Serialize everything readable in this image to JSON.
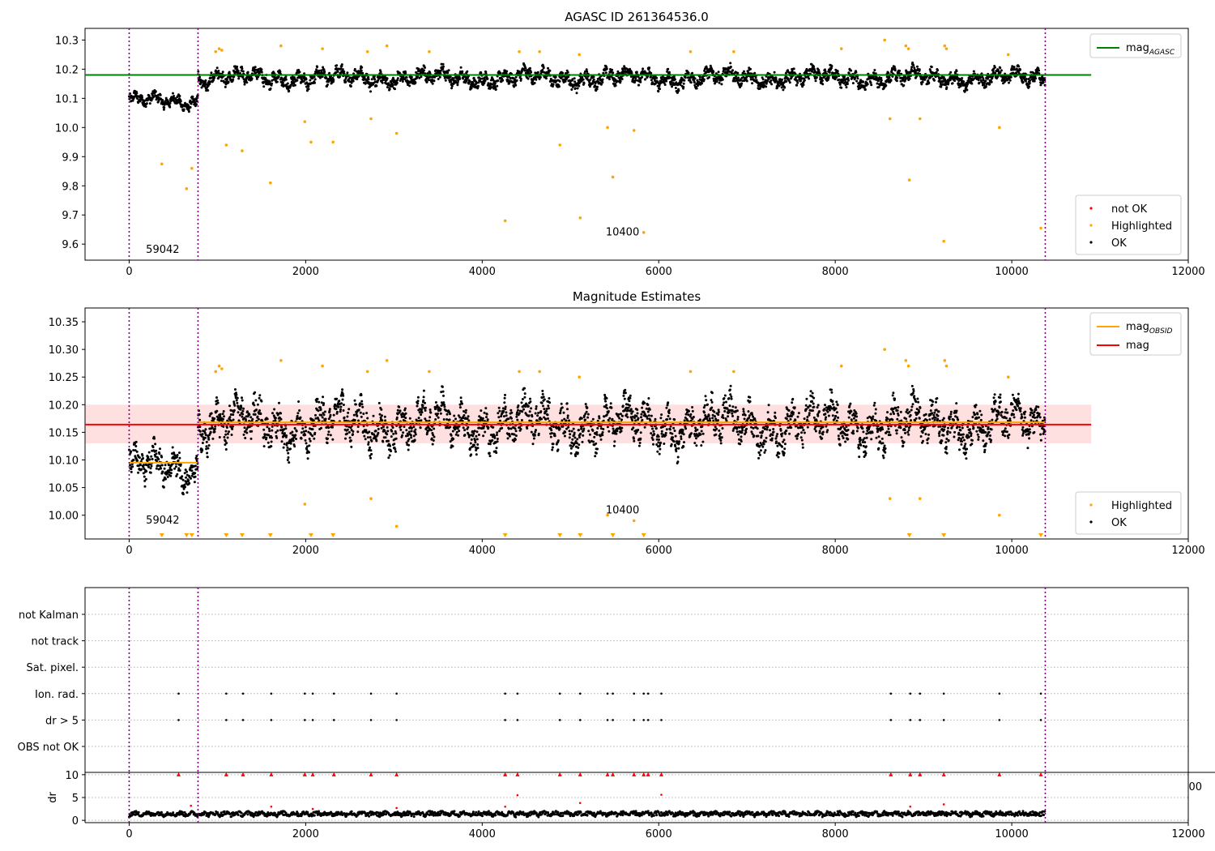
{
  "chart_data": [
    {
      "type": "scatter",
      "title": "AGASC ID 261364536.0",
      "xlim": [
        -500,
        12000
      ],
      "ylim": [
        9.545,
        10.34
      ],
      "xticks": [
        0,
        2000,
        4000,
        6000,
        8000,
        10000,
        12000
      ],
      "yticks": [
        9.6,
        9.7,
        9.8,
        9.9,
        10.0,
        10.1,
        10.2,
        10.3
      ],
      "ytick_labels": [
        "9.6",
        "9.7",
        "9.8",
        "9.9",
        "10.0",
        "10.1",
        "10.2",
        "10.3"
      ],
      "lines": [
        {
          "name": "mag_AGASC",
          "label_main": "mag",
          "label_sub": "AGASC",
          "y": 10.18,
          "x": [
            -500,
            10900
          ],
          "color": "#008000"
        }
      ],
      "vlines": [
        0,
        780,
        10380
      ],
      "vline_color": "#800080",
      "annotations": [
        {
          "text": "59042",
          "x": 190,
          "y": 9.57
        },
        {
          "text": "10400",
          "x": 5400,
          "y": 9.63
        }
      ],
      "legend": [
        {
          "label": "not OK",
          "color": "#ff0000",
          "kind": "dot"
        },
        {
          "label": "Highlighted",
          "color": "#ffa500",
          "kind": "dot"
        },
        {
          "label": "OK",
          "color": "#000000",
          "kind": "dot"
        }
      ],
      "legend_position": "lower-right",
      "line_legend_position": "upper-right",
      "segments": [
        {
          "x": [
            0,
            780
          ],
          "base": 10.09,
          "amp": 0.025
        },
        {
          "x": [
            780,
            10380
          ],
          "base": 10.17,
          "amp": 0.03
        }
      ],
      "highlighted_outliers": [
        [
          370,
          9.875
        ],
        [
          650,
          9.79
        ],
        [
          710,
          9.86
        ],
        [
          1100,
          9.94
        ],
        [
          1280,
          9.92
        ],
        [
          1600,
          9.81
        ],
        [
          1990,
          10.02
        ],
        [
          2060,
          9.95
        ],
        [
          2310,
          9.95
        ],
        [
          2740,
          10.03
        ],
        [
          3030,
          9.98
        ],
        [
          4260,
          9.68
        ],
        [
          4880,
          9.94
        ],
        [
          5110,
          9.69
        ],
        [
          5420,
          10.0
        ],
        [
          5480,
          9.83
        ],
        [
          5720,
          9.99
        ],
        [
          5830,
          9.64
        ],
        [
          8620,
          10.03
        ],
        [
          8840,
          9.82
        ],
        [
          8960,
          10.03
        ],
        [
          9230,
          9.61
        ],
        [
          9860,
          10.0
        ],
        [
          10330,
          9.655
        ]
      ],
      "highlighted_high": [
        [
          980,
          10.26
        ],
        [
          1020,
          10.27
        ],
        [
          1050,
          10.265
        ],
        [
          1720,
          10.28
        ],
        [
          2190,
          10.27
        ],
        [
          2700,
          10.26
        ],
        [
          2920,
          10.28
        ],
        [
          3400,
          10.26
        ],
        [
          4420,
          10.26
        ],
        [
          4650,
          10.26
        ],
        [
          5100,
          10.25
        ],
        [
          6360,
          10.26
        ],
        [
          6850,
          10.26
        ],
        [
          8070,
          10.27
        ],
        [
          8560,
          10.3
        ],
        [
          8800,
          10.28
        ],
        [
          8830,
          10.27
        ],
        [
          9240,
          10.28
        ],
        [
          9260,
          10.27
        ],
        [
          9960,
          10.25
        ]
      ]
    },
    {
      "type": "scatter",
      "title": "Magnitude Estimates",
      "xlim": [
        -500,
        12000
      ],
      "ylim": [
        9.957,
        10.375
      ],
      "xticks": [
        0,
        2000,
        4000,
        6000,
        8000,
        10000,
        12000
      ],
      "yticks": [
        10.0,
        10.05,
        10.1,
        10.15,
        10.2,
        10.25,
        10.3,
        10.35
      ],
      "ytick_labels": [
        "10.00",
        "10.05",
        "10.10",
        "10.15",
        "10.20",
        "10.25",
        "10.30",
        "10.35"
      ],
      "band": {
        "y": [
          10.13,
          10.2
        ],
        "x": [
          -500,
          10900
        ],
        "color": "#ff0000",
        "opacity": 0.12
      },
      "lines": [
        {
          "name": "mag_OBSID",
          "label_main": "mag",
          "label_sub": "OBSID",
          "y": 10.095,
          "x": [
            0,
            780
          ],
          "color": "#ffa500",
          "y2": 10.168,
          "x2": [
            780,
            10380
          ]
        },
        {
          "name": "mag",
          "label_main": "mag",
          "label_sub": "",
          "y": 10.164,
          "x": [
            -500,
            10900
          ],
          "color": "#ff0000"
        }
      ],
      "vlines": [
        0,
        780,
        10380
      ],
      "annotations": [
        {
          "text": "59042",
          "x": 190,
          "y": 9.985
        },
        {
          "text": "10400",
          "x": 5400,
          "y": 10.003
        }
      ],
      "legend": [
        {
          "label": "Highlighted",
          "color": "#ffa500",
          "kind": "dot"
        },
        {
          "label": "OK",
          "color": "#000000",
          "kind": "dot"
        }
      ],
      "legend_position": "lower-right",
      "line_legend_position": "upper-right",
      "below_range_markers": [
        370,
        650,
        710,
        1100,
        1280,
        1600,
        2060,
        2310,
        4260,
        4880,
        5110,
        5480,
        5830,
        8840,
        9230,
        10330
      ]
    },
    {
      "type": "scatter",
      "title": "",
      "xlim": [
        -500,
        12000
      ],
      "categories": [
        "not Kalman",
        "not track",
        "Sat. pixel.",
        "Ion. rad.",
        "dr > 5",
        "OBS not OK"
      ],
      "flag_x": [
        560,
        1100,
        1290,
        1610,
        1990,
        2080,
        2320,
        2740,
        3030,
        4260,
        4400,
        4880,
        5110,
        5420,
        5480,
        5720,
        5830,
        5880,
        6030,
        8630,
        8850,
        8960,
        9230,
        9860,
        10330
      ],
      "flag_rows": [
        "Ion. rad.",
        "dr > 5"
      ],
      "vlines": [
        0,
        780,
        10380
      ]
    },
    {
      "type": "scatter",
      "title": "",
      "xlim": [
        -500,
        12000
      ],
      "ylim": [
        -0.5,
        10.5
      ],
      "ylabel": "dr",
      "xticks": [
        0,
        2000,
        4000,
        6000,
        8000,
        10000,
        12000
      ],
      "yticks": [
        0,
        5,
        10
      ],
      "ytick_labels": [
        "0",
        "5",
        "10"
      ],
      "overlap_tick_label": "00",
      "clipped_x": [
        560,
        1100,
        1290,
        1610,
        1990,
        2080,
        2320,
        2740,
        3030,
        4260,
        4400,
        4880,
        5110,
        5420,
        5480,
        5720,
        5830,
        5880,
        6030,
        8630,
        8850,
        8960,
        9230,
        9860,
        10330
      ],
      "red_points": [
        [
          700,
          3.2
        ],
        [
          1610,
          3.0
        ],
        [
          2080,
          2.5
        ],
        [
          3030,
          2.7
        ],
        [
          4260,
          3.0
        ],
        [
          4400,
          5.5
        ],
        [
          5110,
          3.8
        ],
        [
          6030,
          5.6
        ],
        [
          8850,
          3.0
        ],
        [
          9230,
          3.5
        ]
      ],
      "vlines": [
        0,
        780,
        10380
      ]
    }
  ]
}
